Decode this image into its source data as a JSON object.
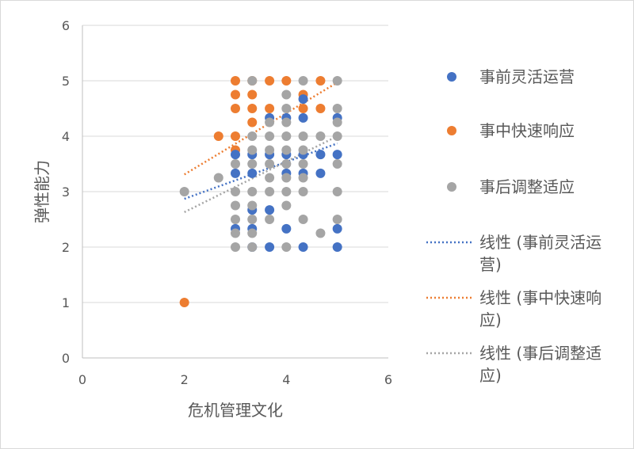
{
  "chart_data": {
    "type": "scatter",
    "title": "",
    "xlabel": "危机管理文化",
    "ylabel": "弹性能力",
    "xlim": [
      0,
      6
    ],
    "ylim": [
      0,
      6
    ],
    "x_ticks": [
      "0",
      "2",
      "4",
      "6"
    ],
    "y_ticks": [
      "0",
      "1",
      "2",
      "3",
      "4",
      "5",
      "6"
    ],
    "grid": "horizontal",
    "legend_position": "right",
    "series": [
      {
        "name": "事前灵活运营",
        "color": "#4472C4",
        "points": [
          [
            3,
            2.33
          ],
          [
            3,
            3.33
          ],
          [
            3,
            3.67
          ],
          [
            3.33,
            2.33
          ],
          [
            3.33,
            2
          ],
          [
            3.33,
            2.67
          ],
          [
            3.33,
            3.33
          ],
          [
            3.33,
            3.67
          ],
          [
            3.67,
            2
          ],
          [
            3.67,
            2.67
          ],
          [
            3.67,
            3.67
          ],
          [
            3.67,
            4.33
          ],
          [
            4,
            2.33
          ],
          [
            4,
            3.33
          ],
          [
            4,
            3.67
          ],
          [
            4,
            4.33
          ],
          [
            4.33,
            2
          ],
          [
            4.33,
            3.33
          ],
          [
            4.33,
            3.67
          ],
          [
            4.33,
            4.33
          ],
          [
            4.33,
            4.67
          ],
          [
            4.67,
            3.33
          ],
          [
            4.67,
            3.67
          ],
          [
            5,
            2
          ],
          [
            5,
            2.33
          ],
          [
            5,
            3.67
          ],
          [
            5,
            4.33
          ]
        ]
      },
      {
        "name": "事中快速响应",
        "color": "#ED7D31",
        "points": [
          [
            2,
            1
          ],
          [
            2.67,
            4
          ],
          [
            3,
            3.75
          ],
          [
            3,
            4
          ],
          [
            3,
            4.5
          ],
          [
            3,
            4.75
          ],
          [
            3,
            5
          ],
          [
            3.33,
            4.25
          ],
          [
            3.33,
            4.5
          ],
          [
            3.33,
            4.75
          ],
          [
            3.33,
            5
          ],
          [
            3.67,
            4.5
          ],
          [
            3.67,
            5
          ],
          [
            4,
            5
          ],
          [
            4.33,
            4.5
          ],
          [
            4.33,
            4.75
          ],
          [
            4.67,
            4.5
          ],
          [
            4.67,
            5
          ]
        ]
      },
      {
        "name": "事后调整适应",
        "color": "#A5A5A5",
        "points": [
          [
            2,
            3
          ],
          [
            2.67,
            3.25
          ],
          [
            3,
            2
          ],
          [
            3,
            2.25
          ],
          [
            3,
            2.5
          ],
          [
            3,
            2.75
          ],
          [
            3,
            3
          ],
          [
            3,
            3.5
          ],
          [
            3.33,
            2
          ],
          [
            3.33,
            2.25
          ],
          [
            3.33,
            2.5
          ],
          [
            3.33,
            2.75
          ],
          [
            3.33,
            3
          ],
          [
            3.33,
            3.5
          ],
          [
            3.33,
            3.75
          ],
          [
            3.33,
            4
          ],
          [
            3.33,
            5
          ],
          [
            3.67,
            2.5
          ],
          [
            3.67,
            3
          ],
          [
            3.67,
            3.25
          ],
          [
            3.67,
            3.5
          ],
          [
            3.67,
            3.75
          ],
          [
            3.67,
            4
          ],
          [
            3.67,
            4.25
          ],
          [
            4,
            2
          ],
          [
            4,
            2.75
          ],
          [
            4,
            3
          ],
          [
            4,
            3.25
          ],
          [
            4,
            3.5
          ],
          [
            4,
            3.75
          ],
          [
            4,
            4
          ],
          [
            4,
            4.25
          ],
          [
            4,
            4.5
          ],
          [
            4,
            4.75
          ],
          [
            4.33,
            2.5
          ],
          [
            4.33,
            3
          ],
          [
            4.33,
            3.25
          ],
          [
            4.33,
            3.5
          ],
          [
            4.33,
            3.75
          ],
          [
            4.33,
            4
          ],
          [
            4.33,
            5
          ],
          [
            4.67,
            2.25
          ],
          [
            4.67,
            4
          ],
          [
            5,
            2.5
          ],
          [
            5,
            3
          ],
          [
            5,
            3.5
          ],
          [
            5,
            4
          ],
          [
            5,
            4.25
          ],
          [
            5,
            4.5
          ],
          [
            5,
            5
          ]
        ]
      }
    ],
    "trendlines": [
      {
        "name": "线性 (事前灵活运营)",
        "color": "#4472C4",
        "x": [
          2,
          5
        ],
        "y": [
          2.87,
          3.87
        ]
      },
      {
        "name": "线性 (事中快速响应)",
        "color": "#ED7D31",
        "x": [
          2,
          5
        ],
        "y": [
          3.31,
          4.97
        ]
      },
      {
        "name": "线性 (事后调整适应)",
        "color": "#A5A5A5",
        "x": [
          2,
          5
        ],
        "y": [
          2.63,
          4.0
        ]
      }
    ]
  },
  "legend": {
    "items": [
      {
        "kind": "marker",
        "color": "#4472C4",
        "lines": [
          "事前灵活运营"
        ]
      },
      {
        "kind": "marker",
        "color": "#ED7D31",
        "lines": [
          "事中快速响应"
        ]
      },
      {
        "kind": "marker",
        "color": "#A5A5A5",
        "lines": [
          "事后调整适应"
        ]
      },
      {
        "kind": "line",
        "color": "#4472C4",
        "lines": [
          "线性 (事前灵活运",
          "营)"
        ]
      },
      {
        "kind": "line",
        "color": "#ED7D31",
        "lines": [
          "线性 (事中快速响",
          "应)"
        ]
      },
      {
        "kind": "line",
        "color": "#A5A5A5",
        "lines": [
          "线性 (事后调整适",
          "应)"
        ]
      }
    ]
  }
}
